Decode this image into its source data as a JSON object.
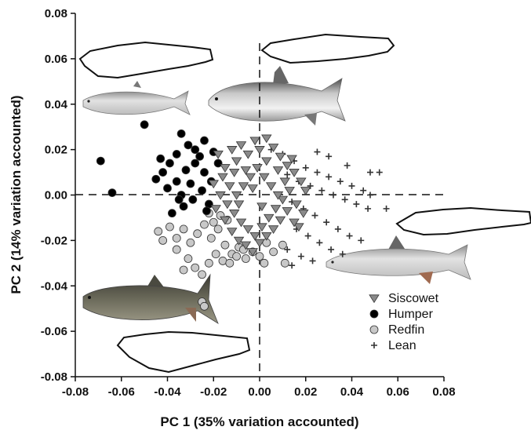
{
  "chart_data": {
    "type": "scatter",
    "xlabel": "PC 1 (35% variation accounted)",
    "ylabel": "PC 2 (14% variation accounted)",
    "xlim": [
      -0.08,
      0.08
    ],
    "ylim": [
      -0.08,
      0.08
    ],
    "x_ticks": [
      "-0.08",
      "-0.06",
      "-0.04",
      "-0.02",
      "0.00",
      "0.02",
      "0.04",
      "0.06",
      "0.08"
    ],
    "y_ticks": [
      "0.08",
      "0.06",
      "0.04",
      "0.02",
      "0.00",
      "-0.02",
      "-0.04",
      "-0.06",
      "-0.08"
    ],
    "reference_lines": {
      "x": 0,
      "y": 0,
      "style": "dashed"
    },
    "grid": false,
    "legend_position": "bottom-right",
    "series": [
      {
        "name": "Siscowet",
        "marker": "triangle-down",
        "color": "#8a8a8a",
        "points": [
          [
            -0.018,
            0.018
          ],
          [
            -0.015,
            0.012
          ],
          [
            -0.012,
            0.02
          ],
          [
            -0.01,
            0.015
          ],
          [
            -0.008,
            0.022
          ],
          [
            -0.005,
            0.018
          ],
          [
            -0.002,
            0.024
          ],
          [
            0.0,
            0.02
          ],
          [
            0.003,
            0.025
          ],
          [
            0.006,
            0.021
          ],
          [
            0.009,
            0.017
          ],
          [
            0.012,
            0.013
          ],
          [
            0.015,
            0.01
          ],
          [
            0.018,
            0.006
          ],
          [
            0.02,
            0.002
          ],
          [
            -0.02,
            0.005
          ],
          [
            -0.017,
            0.0
          ],
          [
            -0.014,
            -0.004
          ],
          [
            -0.011,
            -0.008
          ],
          [
            -0.008,
            -0.012
          ],
          [
            -0.005,
            -0.015
          ],
          [
            -0.002,
            -0.018
          ],
          [
            0.001,
            -0.014
          ],
          [
            0.004,
            -0.01
          ],
          [
            0.007,
            -0.006
          ],
          [
            0.01,
            -0.002
          ],
          [
            0.013,
            0.002
          ],
          [
            0.016,
            -0.004
          ],
          [
            0.019,
            -0.008
          ],
          [
            0.017,
            -0.014
          ],
          [
            -0.016,
            0.008
          ],
          [
            -0.013,
            0.004
          ],
          [
            -0.01,
            0.0
          ],
          [
            -0.007,
            0.004
          ],
          [
            -0.004,
            0.008
          ],
          [
            -0.001,
            0.012
          ],
          [
            0.002,
            0.008
          ],
          [
            0.005,
            0.004
          ],
          [
            0.008,
            0.0
          ],
          [
            0.011,
            0.006
          ],
          [
            -0.019,
            -0.006
          ],
          [
            -0.015,
            -0.011
          ],
          [
            -0.012,
            -0.016
          ],
          [
            -0.009,
            -0.02
          ],
          [
            -0.006,
            -0.022
          ],
          [
            -0.003,
            -0.025
          ],
          [
            0.0,
            -0.021
          ],
          [
            0.003,
            -0.018
          ],
          [
            0.006,
            -0.015
          ],
          [
            0.009,
            -0.011
          ],
          [
            0.012,
            -0.007
          ],
          [
            0.015,
            -0.012
          ],
          [
            0.003,
            0.015
          ],
          [
            -0.006,
            0.011
          ],
          [
            0.008,
            0.011
          ],
          [
            -0.011,
            0.01
          ],
          [
            0.014,
            0.016
          ],
          [
            -0.003,
            0.003
          ],
          [
            0.001,
            -0.005
          ],
          [
            -0.009,
            -0.004
          ]
        ]
      },
      {
        "name": "Humper",
        "marker": "circle",
        "color": "#000000",
        "points": [
          [
            -0.069,
            0.015
          ],
          [
            -0.064,
            0.001
          ],
          [
            -0.05,
            0.031
          ],
          [
            -0.034,
            0.027
          ],
          [
            -0.031,
            0.022
          ],
          [
            -0.028,
            0.02
          ],
          [
            -0.024,
            0.024
          ],
          [
            -0.02,
            0.019
          ],
          [
            -0.036,
            0.018
          ],
          [
            -0.039,
            0.014
          ],
          [
            -0.042,
            0.01
          ],
          [
            -0.045,
            0.007
          ],
          [
            -0.04,
            0.003
          ],
          [
            -0.036,
            0.006
          ],
          [
            -0.032,
            0.011
          ],
          [
            -0.028,
            0.014
          ],
          [
            -0.024,
            0.01
          ],
          [
            -0.021,
            0.006
          ],
          [
            -0.025,
            0.002
          ],
          [
            -0.029,
            -0.002
          ],
          [
            -0.033,
            -0.005
          ],
          [
            -0.038,
            -0.008
          ],
          [
            -0.034,
            0.0
          ],
          [
            -0.022,
            -0.004
          ],
          [
            -0.026,
            0.017
          ],
          [
            -0.03,
            0.005
          ],
          [
            -0.018,
            0.014
          ],
          [
            -0.043,
            0.016
          ],
          [
            -0.035,
            -0.002
          ],
          [
            -0.023,
            -0.007
          ]
        ]
      },
      {
        "name": "Redfin",
        "marker": "circle",
        "color": "#c8c8c8",
        "points": [
          [
            -0.044,
            -0.016
          ],
          [
            -0.042,
            -0.02
          ],
          [
            -0.039,
            -0.014
          ],
          [
            -0.036,
            -0.019
          ],
          [
            -0.033,
            -0.015
          ],
          [
            -0.03,
            -0.021
          ],
          [
            -0.027,
            -0.017
          ],
          [
            -0.024,
            -0.013
          ],
          [
            -0.021,
            -0.019
          ],
          [
            -0.018,
            -0.015
          ],
          [
            -0.015,
            -0.022
          ],
          [
            -0.012,
            -0.026
          ],
          [
            -0.009,
            -0.023
          ],
          [
            -0.006,
            -0.028
          ],
          [
            -0.003,
            -0.025
          ],
          [
            0.0,
            -0.027
          ],
          [
            0.003,
            -0.021
          ],
          [
            0.006,
            -0.025
          ],
          [
            0.01,
            -0.022
          ],
          [
            -0.031,
            -0.028
          ],
          [
            -0.028,
            -0.032
          ],
          [
            -0.025,
            -0.035
          ],
          [
            -0.022,
            -0.03
          ],
          [
            -0.019,
            -0.026
          ],
          [
            -0.016,
            -0.029
          ],
          [
            -0.013,
            -0.03
          ],
          [
            -0.01,
            -0.027
          ],
          [
            -0.007,
            -0.024
          ],
          [
            -0.033,
            -0.033
          ],
          [
            0.011,
            -0.03
          ],
          [
            -0.025,
            -0.047
          ],
          [
            -0.024,
            -0.049
          ],
          [
            -0.022,
            -0.008
          ],
          [
            -0.02,
            -0.012
          ],
          [
            -0.017,
            -0.009
          ],
          [
            -0.014,
            -0.011
          ],
          [
            0.002,
            -0.03
          ],
          [
            -0.036,
            -0.024
          ]
        ]
      },
      {
        "name": "Lean",
        "marker": "plus",
        "color": "#333333",
        "points": [
          [
            0.005,
            0.02
          ],
          [
            0.01,
            0.018
          ],
          [
            0.015,
            0.015
          ],
          [
            0.02,
            0.012
          ],
          [
            0.025,
            0.01
          ],
          [
            0.03,
            0.008
          ],
          [
            0.035,
            0.006
          ],
          [
            0.04,
            0.004
          ],
          [
            0.045,
            0.002
          ],
          [
            0.048,
            0.0
          ],
          [
            0.012,
            0.009
          ],
          [
            0.017,
            0.006
          ],
          [
            0.022,
            0.004
          ],
          [
            0.027,
            0.002
          ],
          [
            0.032,
            0.0
          ],
          [
            0.037,
            -0.002
          ],
          [
            0.042,
            -0.004
          ],
          [
            0.047,
            -0.006
          ],
          [
            0.014,
            -0.003
          ],
          [
            0.019,
            -0.006
          ],
          [
            0.024,
            -0.009
          ],
          [
            0.029,
            -0.012
          ],
          [
            0.034,
            -0.015
          ],
          [
            0.039,
            -0.018
          ],
          [
            0.044,
            -0.02
          ],
          [
            0.016,
            -0.015
          ],
          [
            0.021,
            -0.018
          ],
          [
            0.026,
            -0.021
          ],
          [
            0.031,
            -0.024
          ],
          [
            0.036,
            -0.026
          ],
          [
            0.018,
            -0.027
          ],
          [
            0.023,
            -0.029
          ],
          [
            0.014,
            -0.031
          ],
          [
            0.012,
            -0.024
          ],
          [
            0.052,
            0.01
          ],
          [
            0.055,
            -0.006
          ],
          [
            0.048,
            0.01
          ],
          [
            0.03,
            0.017
          ],
          [
            0.025,
            0.019
          ],
          [
            0.038,
            0.013
          ]
        ]
      }
    ]
  }
}
